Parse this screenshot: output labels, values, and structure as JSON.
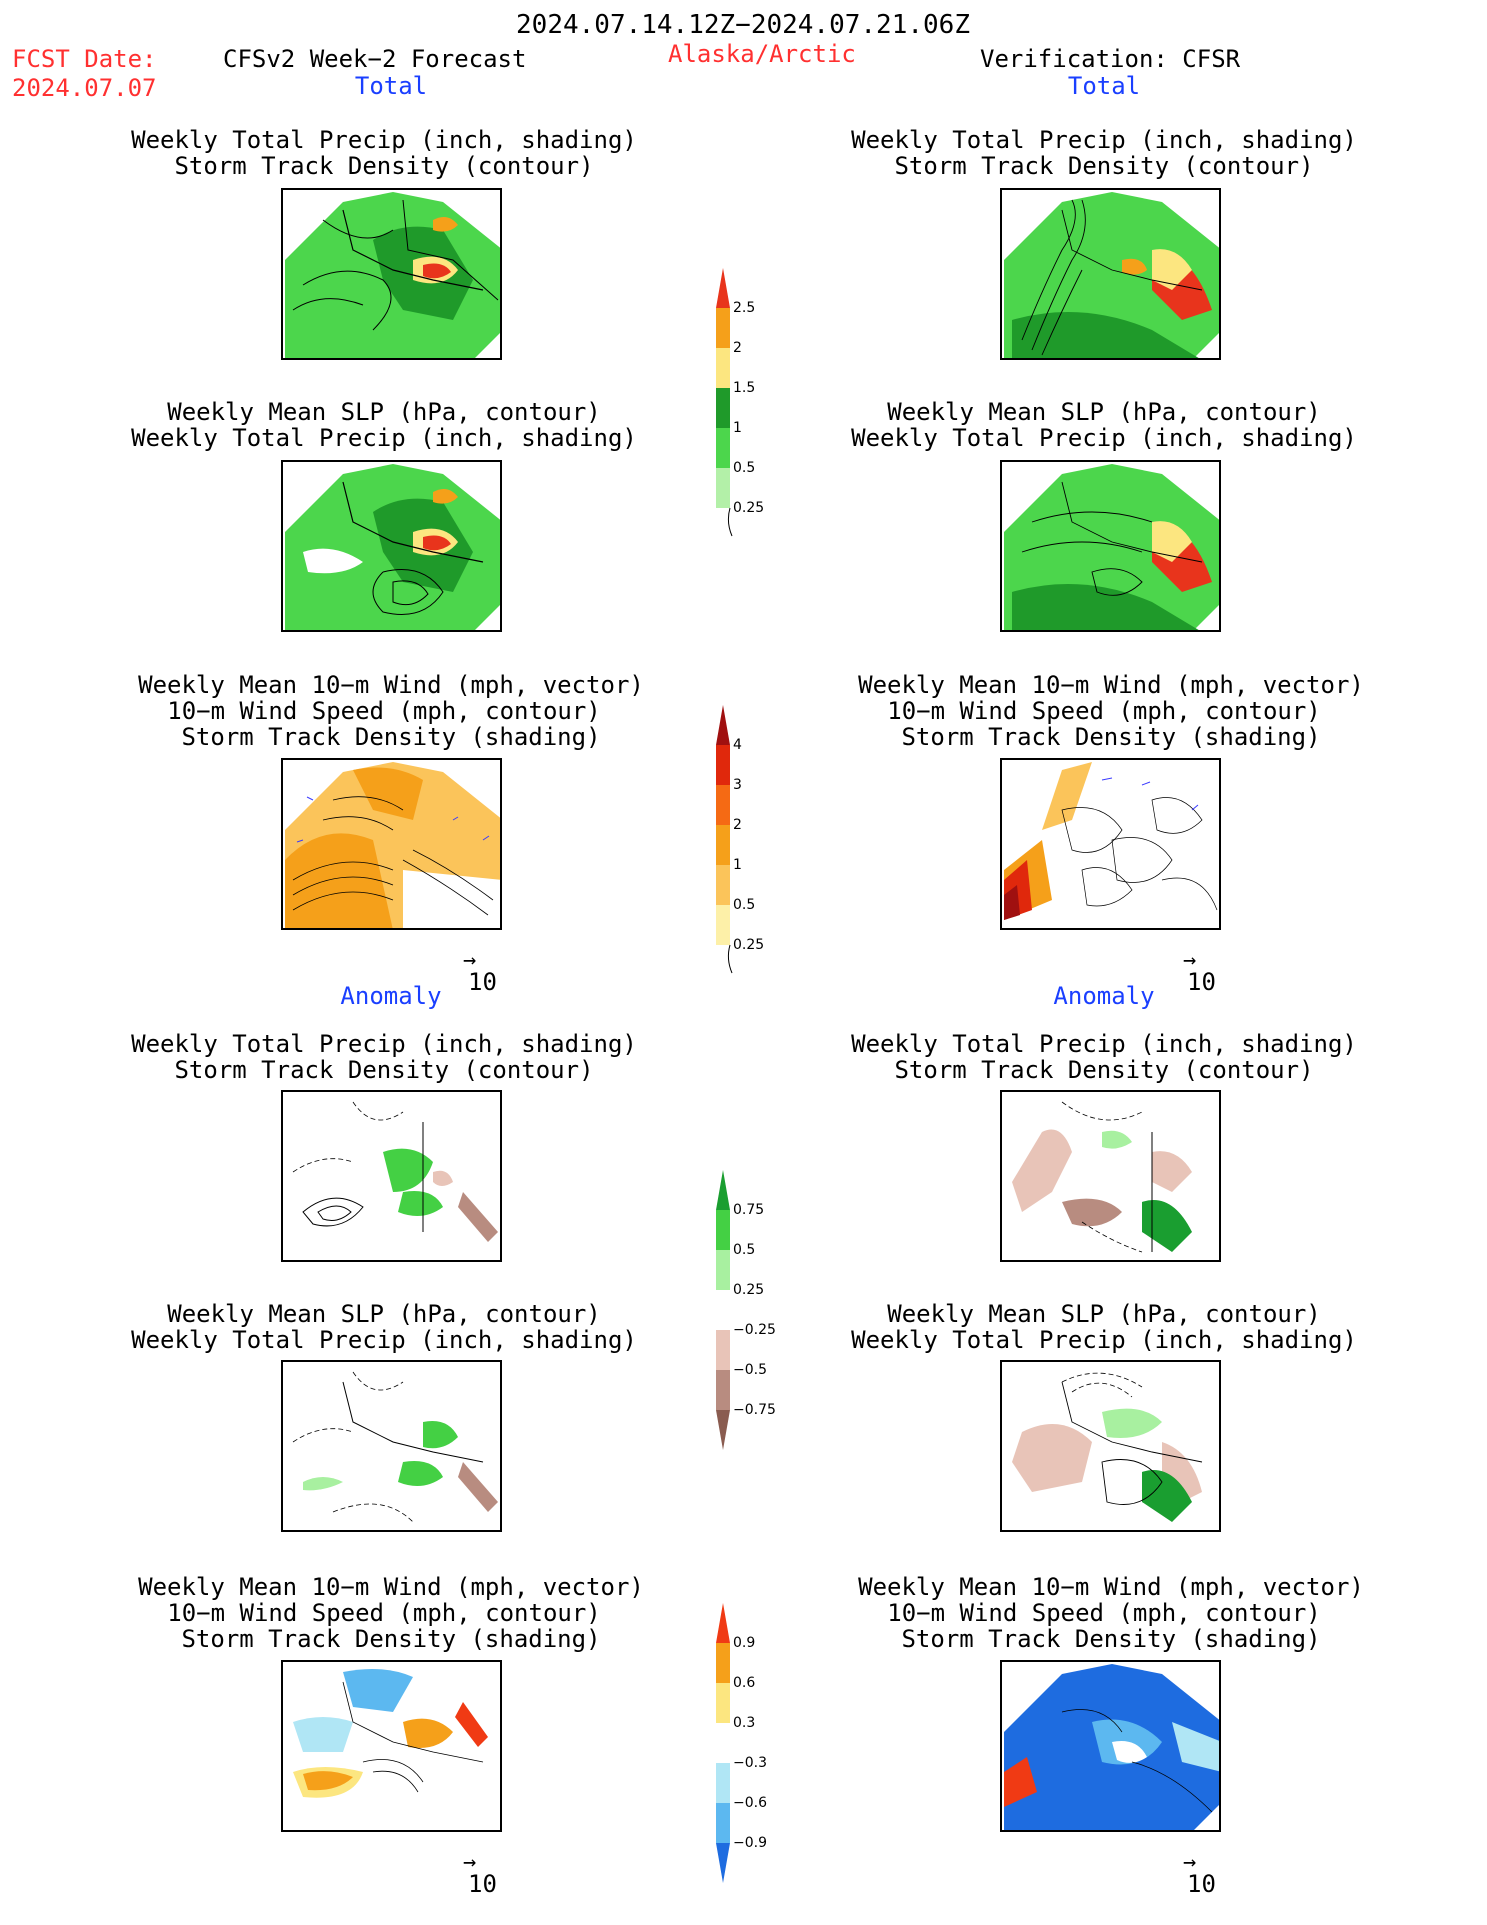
{
  "header": {
    "date_range": "2024.07.14.12Z−2024.07.21.06Z",
    "fcst_label": "FCST Date:",
    "fcst_date": "2024.07.07",
    "model_title": "CFSv2 Week−2 Forecast",
    "region": "Alaska/Arctic",
    "verification": "Verification: CFSR"
  },
  "sections": {
    "total": "Total",
    "anomaly": "Anomaly"
  },
  "titles": {
    "precip_storm": [
      "Weekly Total Precip (inch, shading)",
      "Storm Track Density (contour)"
    ],
    "slp_precip": [
      "Weekly Mean SLP (hPa, contour)",
      "Weekly Total Precip (inch, shading)"
    ],
    "wind_storm": [
      "Weekly Mean 10−m Wind (mph, vector)",
      "10−m Wind Speed (mph, contour)",
      "Storm Track Density (shading)"
    ]
  },
  "vector_key": "10",
  "colorbars": {
    "precip_total": {
      "labels": [
        "2.5",
        "2",
        "1.5",
        "1",
        "0.5",
        "0.25"
      ],
      "colors": [
        "#e8341c",
        "#f5a01a",
        "#fce680",
        "#1f9a2a",
        "#4cd64c",
        "#b3f0a8"
      ]
    },
    "storm_total": {
      "labels": [
        "4",
        "3",
        "2",
        "1",
        "0.5",
        "0.25"
      ],
      "colors": [
        "#a01010",
        "#e0280c",
        "#f56a14",
        "#f5a01a",
        "#fbc45a",
        "#fdf0a8"
      ]
    },
    "precip_anom": {
      "labels": [
        "0.75",
        "0.5",
        "0.25",
        "−0.25",
        "−0.5",
        "−0.75"
      ],
      "colors": [
        "#1a9e30",
        "#44d044",
        "#a8f0a0",
        "#ffffff",
        "#e8c4b8",
        "#b88c80",
        "#8a5c50"
      ]
    },
    "storm_anom": {
      "labels": [
        "0.9",
        "0.6",
        "0.3",
        "−0.3",
        "−0.6",
        "−0.9"
      ],
      "colors": [
        "#f03a14",
        "#f5a01a",
        "#fce680",
        "#ffffff",
        "#b0e6f5",
        "#5cb8f0",
        "#1e6ce0"
      ]
    }
  }
}
